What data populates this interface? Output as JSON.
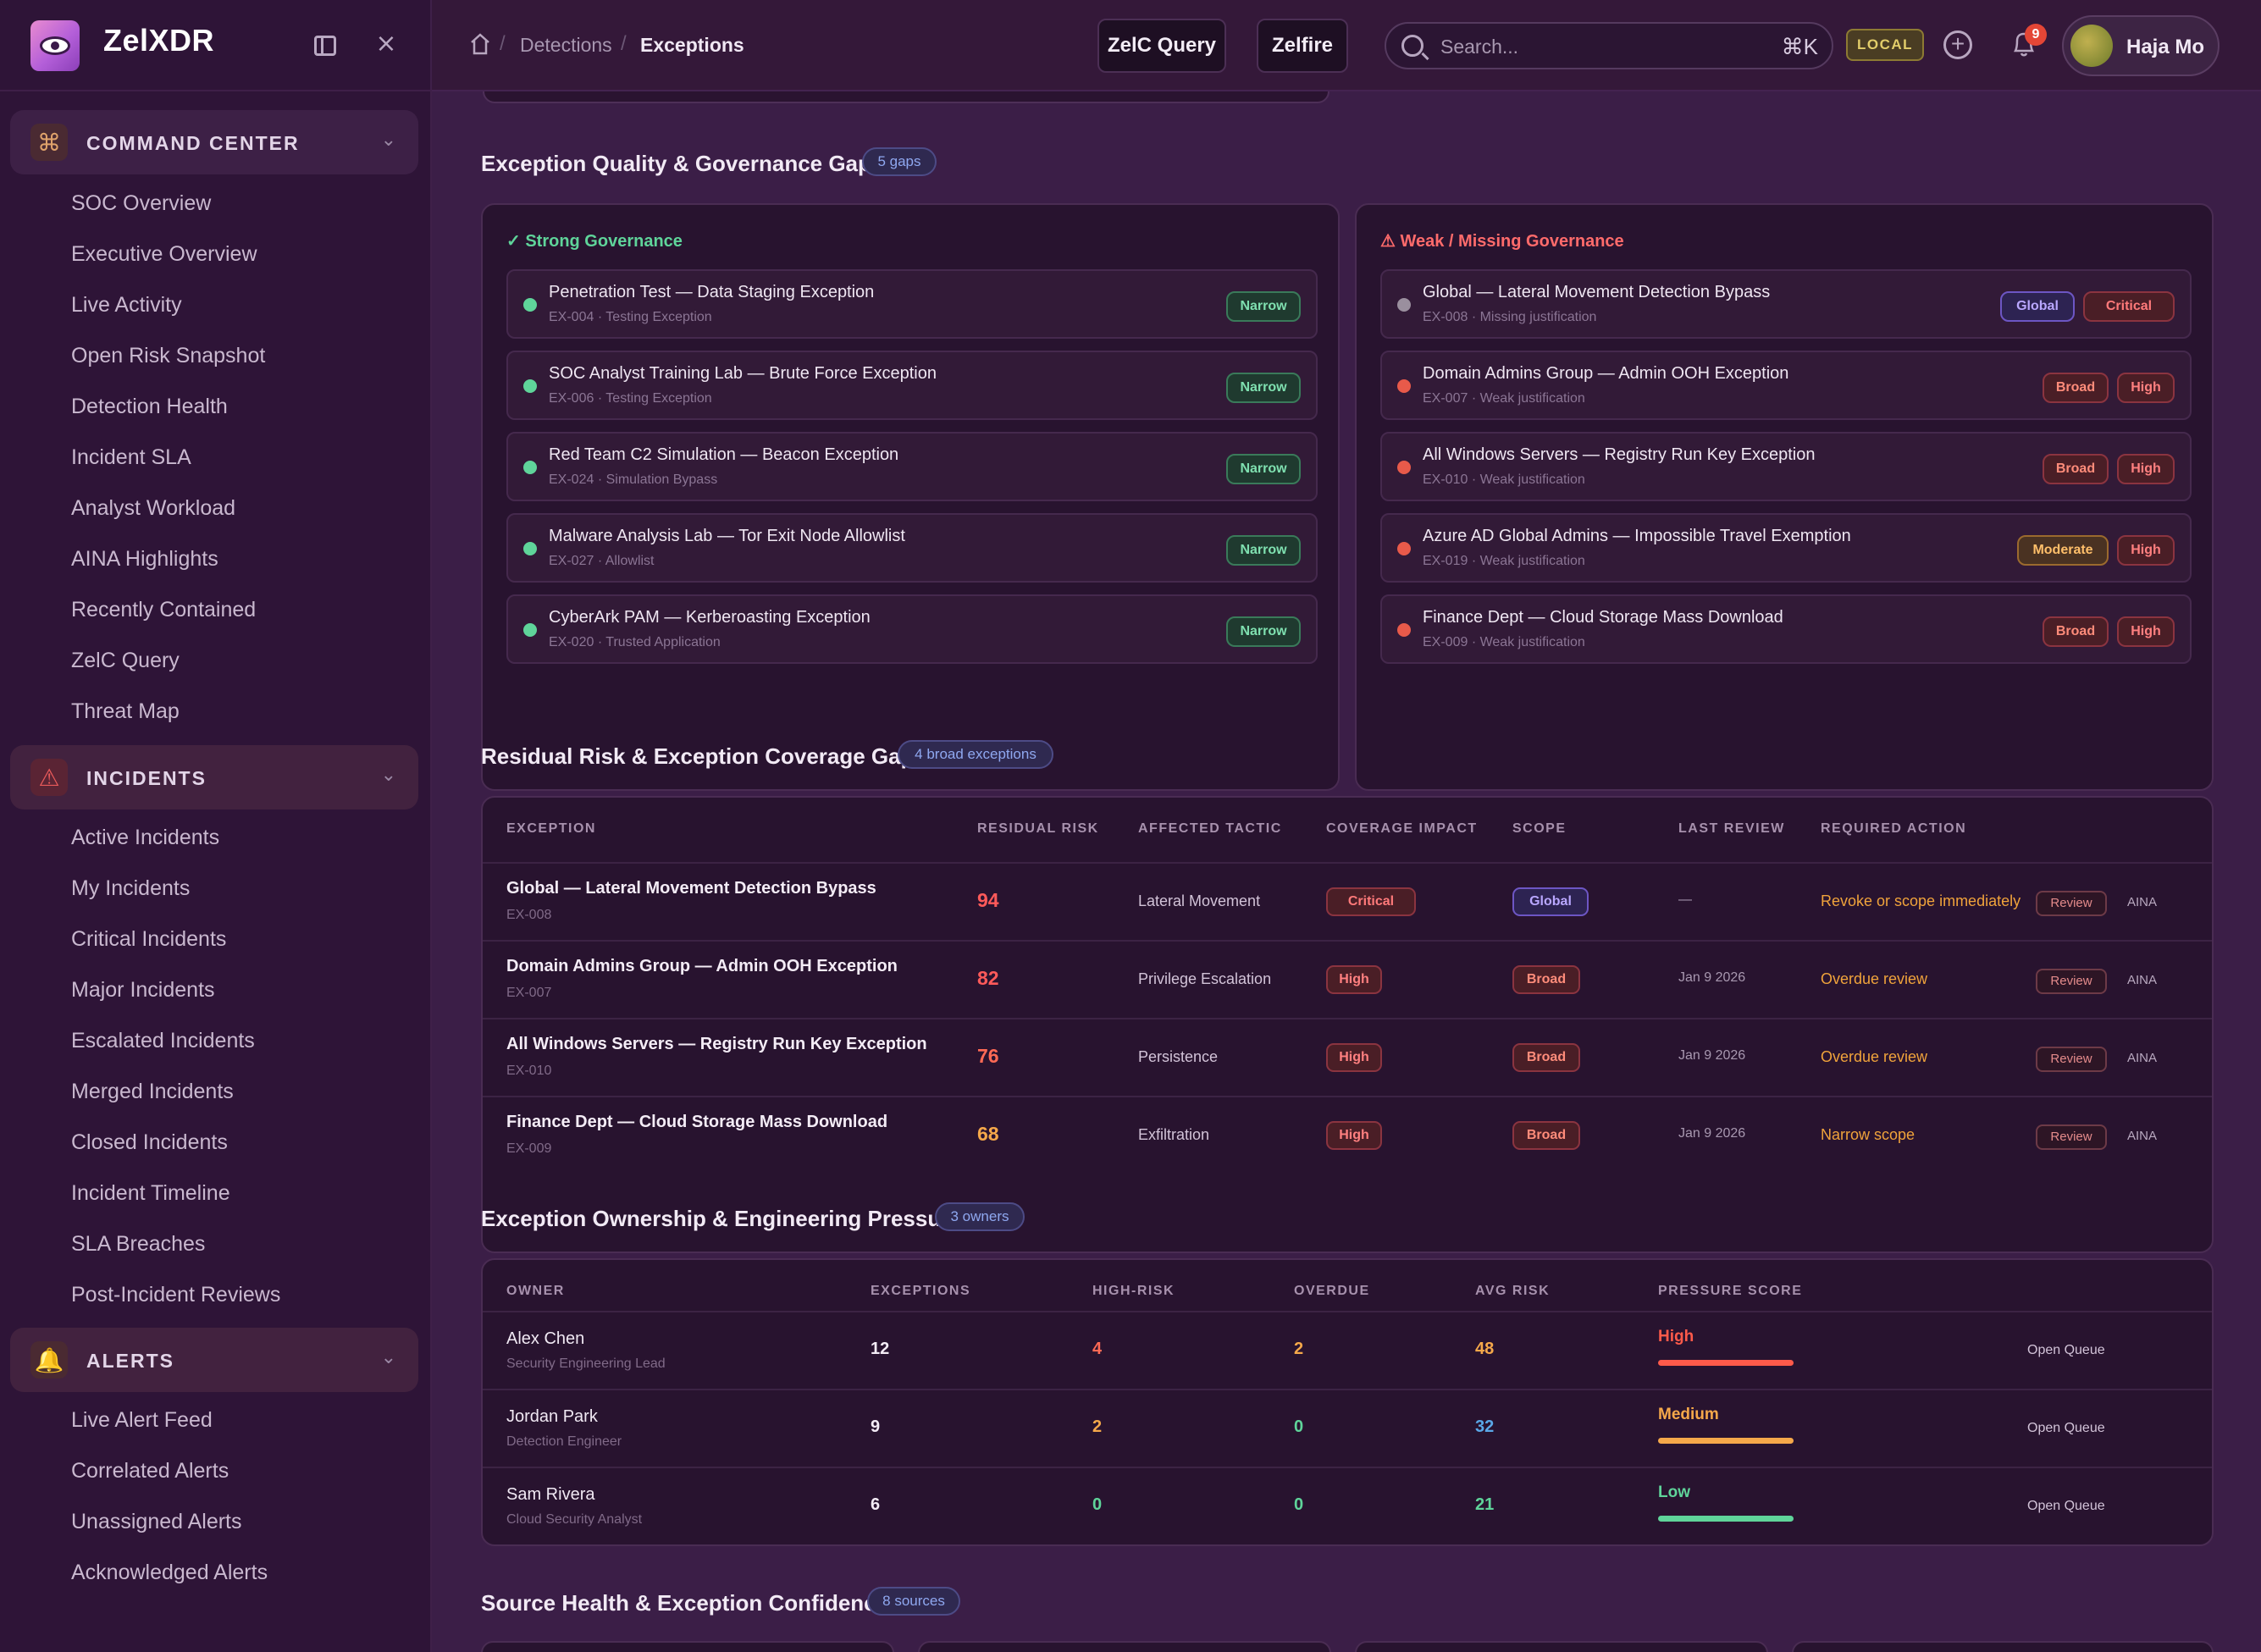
{
  "app": {
    "brand": "ZelXDR"
  },
  "sidebar": {
    "sections": [
      {
        "label": "COMMAND CENTER",
        "icon": "command-icon",
        "color": "#e0a36b",
        "items": [
          "SOC Overview",
          "Executive Overview",
          "Live Activity",
          "Open Risk Snapshot",
          "Detection Health",
          "Incident SLA",
          "Analyst Workload",
          "AINA Highlights",
          "Recently Contained",
          "ZelC Query",
          "Threat Map"
        ]
      },
      {
        "label": "INCIDENTS",
        "icon": "warning-triangle-icon",
        "color": "#e85a5a",
        "items": [
          "Active Incidents",
          "My Incidents",
          "Critical Incidents",
          "Major Incidents",
          "Escalated Incidents",
          "Merged Incidents",
          "Closed Incidents",
          "Incident Timeline",
          "SLA Breaches",
          "Post-Incident Reviews"
        ]
      },
      {
        "label": "ALERTS",
        "icon": "bell-icon",
        "color": "#e0a36b",
        "items": [
          "Live Alert Feed",
          "Correlated Alerts",
          "Unassigned Alerts",
          "Acknowledged Alerts"
        ]
      }
    ]
  },
  "topbar": {
    "breadcrumb": [
      "Detections",
      "Exceptions"
    ],
    "buttons": [
      "ZelC Query",
      "Zelfire"
    ],
    "search_placeholder": "Search...",
    "shortcut": "⌘K",
    "env_badge": "LOCAL",
    "notifications": "9",
    "user": "Haja Mo"
  },
  "governance": {
    "title": "Exception Quality & Governance Gaps",
    "count": "5 gaps",
    "strong": {
      "heading": "✓ Strong Governance",
      "color": "#5fd49a",
      "rows": [
        {
          "title": "Penetration Test — Data Staging Exception",
          "sub": "EX-004 · Testing Exception",
          "tags": [
            {
              "label": "Narrow",
              "kind": "narrow"
            }
          ]
        },
        {
          "title": "SOC Analyst Training Lab — Brute Force Exception",
          "sub": "EX-006 · Testing Exception",
          "tags": [
            {
              "label": "Narrow",
              "kind": "narrow"
            }
          ]
        },
        {
          "title": "Red Team C2 Simulation — Beacon Exception",
          "sub": "EX-024 · Simulation Bypass",
          "tags": [
            {
              "label": "Narrow",
              "kind": "narrow"
            }
          ]
        },
        {
          "title": "Malware Analysis Lab — Tor Exit Node Allowlist",
          "sub": "EX-027 · Allowlist",
          "tags": [
            {
              "label": "Narrow",
              "kind": "narrow"
            }
          ]
        },
        {
          "title": "CyberArk PAM — Kerberoasting Exception",
          "sub": "EX-020 · Trusted Application",
          "tags": [
            {
              "label": "Narrow",
              "kind": "narrow"
            }
          ]
        }
      ]
    },
    "weak": {
      "heading": "⚠ Weak / Missing Governance",
      "color": "#ff6b6b",
      "rows": [
        {
          "title": "Global — Lateral Movement Detection Bypass",
          "sub": "EX-008 · Missing justification",
          "dot": "#9a8f9e",
          "tags": [
            {
              "label": "Global",
              "kind": "global"
            },
            {
              "label": "Critical",
              "kind": "critical"
            }
          ]
        },
        {
          "title": "Domain Admins Group — Admin OOH Exception",
          "sub": "EX-007 · Weak justification",
          "dot": "#e85a4a",
          "tags": [
            {
              "label": "Broad",
              "kind": "broad"
            },
            {
              "label": "High",
              "kind": "high"
            }
          ]
        },
        {
          "title": "All Windows Servers — Registry Run Key Exception",
          "sub": "EX-010 · Weak justification",
          "dot": "#e85a4a",
          "tags": [
            {
              "label": "Broad",
              "kind": "broad"
            },
            {
              "label": "High",
              "kind": "high"
            }
          ]
        },
        {
          "title": "Azure AD Global Admins — Impossible Travel Exemption",
          "sub": "EX-019 · Weak justification",
          "dot": "#e85a4a",
          "tags": [
            {
              "label": "Moderate",
              "kind": "moderate"
            },
            {
              "label": "High",
              "kind": "high"
            }
          ]
        },
        {
          "title": "Finance Dept — Cloud Storage Mass Download",
          "sub": "EX-009 · Weak justification",
          "dot": "#e85a4a",
          "tags": [
            {
              "label": "Broad",
              "kind": "broad"
            },
            {
              "label": "High",
              "kind": "high"
            }
          ]
        }
      ]
    }
  },
  "residual": {
    "title": "Residual Risk & Exception Coverage Gaps",
    "count": "4 broad exceptions",
    "columns": [
      "EXCEPTION",
      "RESIDUAL RISK",
      "AFFECTED TACTIC",
      "COVERAGE IMPACT",
      "SCOPE",
      "LAST REVIEW",
      "REQUIRED ACTION"
    ],
    "rows": [
      {
        "name": "Global — Lateral Movement Detection Bypass",
        "id": "EX-008",
        "risk": "94",
        "risk_color": "#ff5a5a",
        "tactic": "Lateral Movement",
        "impact": {
          "label": "Critical",
          "kind": "critical"
        },
        "scope": {
          "label": "Global",
          "kind": "global"
        },
        "review": "—",
        "action": "Revoke or scope immediately",
        "btn": "Review",
        "aina": "AINA"
      },
      {
        "name": "Domain Admins Group — Admin OOH Exception",
        "id": "EX-007",
        "risk": "82",
        "risk_color": "#ff5a5a",
        "tactic": "Privilege Escalation",
        "impact": {
          "label": "High",
          "kind": "high"
        },
        "scope": {
          "label": "Broad",
          "kind": "broad"
        },
        "review": "Jan 9 2026",
        "action": "Overdue review",
        "btn": "Review",
        "aina": "AINA"
      },
      {
        "name": "All Windows Servers — Registry Run Key Exception",
        "id": "EX-010",
        "risk": "76",
        "risk_color": "#ff6a55",
        "tactic": "Persistence",
        "impact": {
          "label": "High",
          "kind": "high"
        },
        "scope": {
          "label": "Broad",
          "kind": "broad"
        },
        "review": "Jan 9 2026",
        "action": "Overdue review",
        "btn": "Review",
        "aina": "AINA"
      },
      {
        "name": "Finance Dept — Cloud Storage Mass Download",
        "id": "EX-009",
        "risk": "68",
        "risk_color": "#f5a84a",
        "tactic": "Exfiltration",
        "impact": {
          "label": "High",
          "kind": "high"
        },
        "scope": {
          "label": "Broad",
          "kind": "broad"
        },
        "review": "Jan 9 2026",
        "action": "Narrow scope",
        "btn": "Review",
        "aina": "AINA"
      }
    ]
  },
  "ownership": {
    "title": "Exception Ownership & Engineering Pressure",
    "count": "3 owners",
    "columns": [
      "OWNER",
      "EXCEPTIONS",
      "HIGH-RISK",
      "OVERDUE",
      "AVG RISK",
      "PRESSURE SCORE"
    ],
    "rows": [
      {
        "name": "Alex Chen",
        "role": "Security Engineering Lead",
        "exceptions": "12",
        "high_risk": "4",
        "high_risk_color": "#ff6a55",
        "overdue": "2",
        "overdue_color": "#f5a84a",
        "avg": "48",
        "avg_color": "#f5a84a",
        "pressure": "High",
        "pressure_color": "#ff5a4a",
        "action": "Open Queue"
      },
      {
        "name": "Jordan Park",
        "role": "Detection Engineer",
        "exceptions": "9",
        "high_risk": "2",
        "high_risk_color": "#f5a84a",
        "overdue": "0",
        "overdue_color": "#5fd49a",
        "avg": "32",
        "avg_color": "#5aa8e8",
        "pressure": "Medium",
        "pressure_color": "#f5a84a",
        "action": "Open Queue"
      },
      {
        "name": "Sam Rivera",
        "role": "Cloud Security Analyst",
        "exceptions": "6",
        "high_risk": "0",
        "high_risk_color": "#5fd49a",
        "overdue": "0",
        "overdue_color": "#5fd49a",
        "avg": "21",
        "avg_color": "#5fd49a",
        "pressure": "Low",
        "pressure_color": "#5fd49a",
        "action": "Open Queue"
      }
    ]
  },
  "source_health": {
    "title": "Source Health & Exception Confidence",
    "count": "8 sources"
  }
}
